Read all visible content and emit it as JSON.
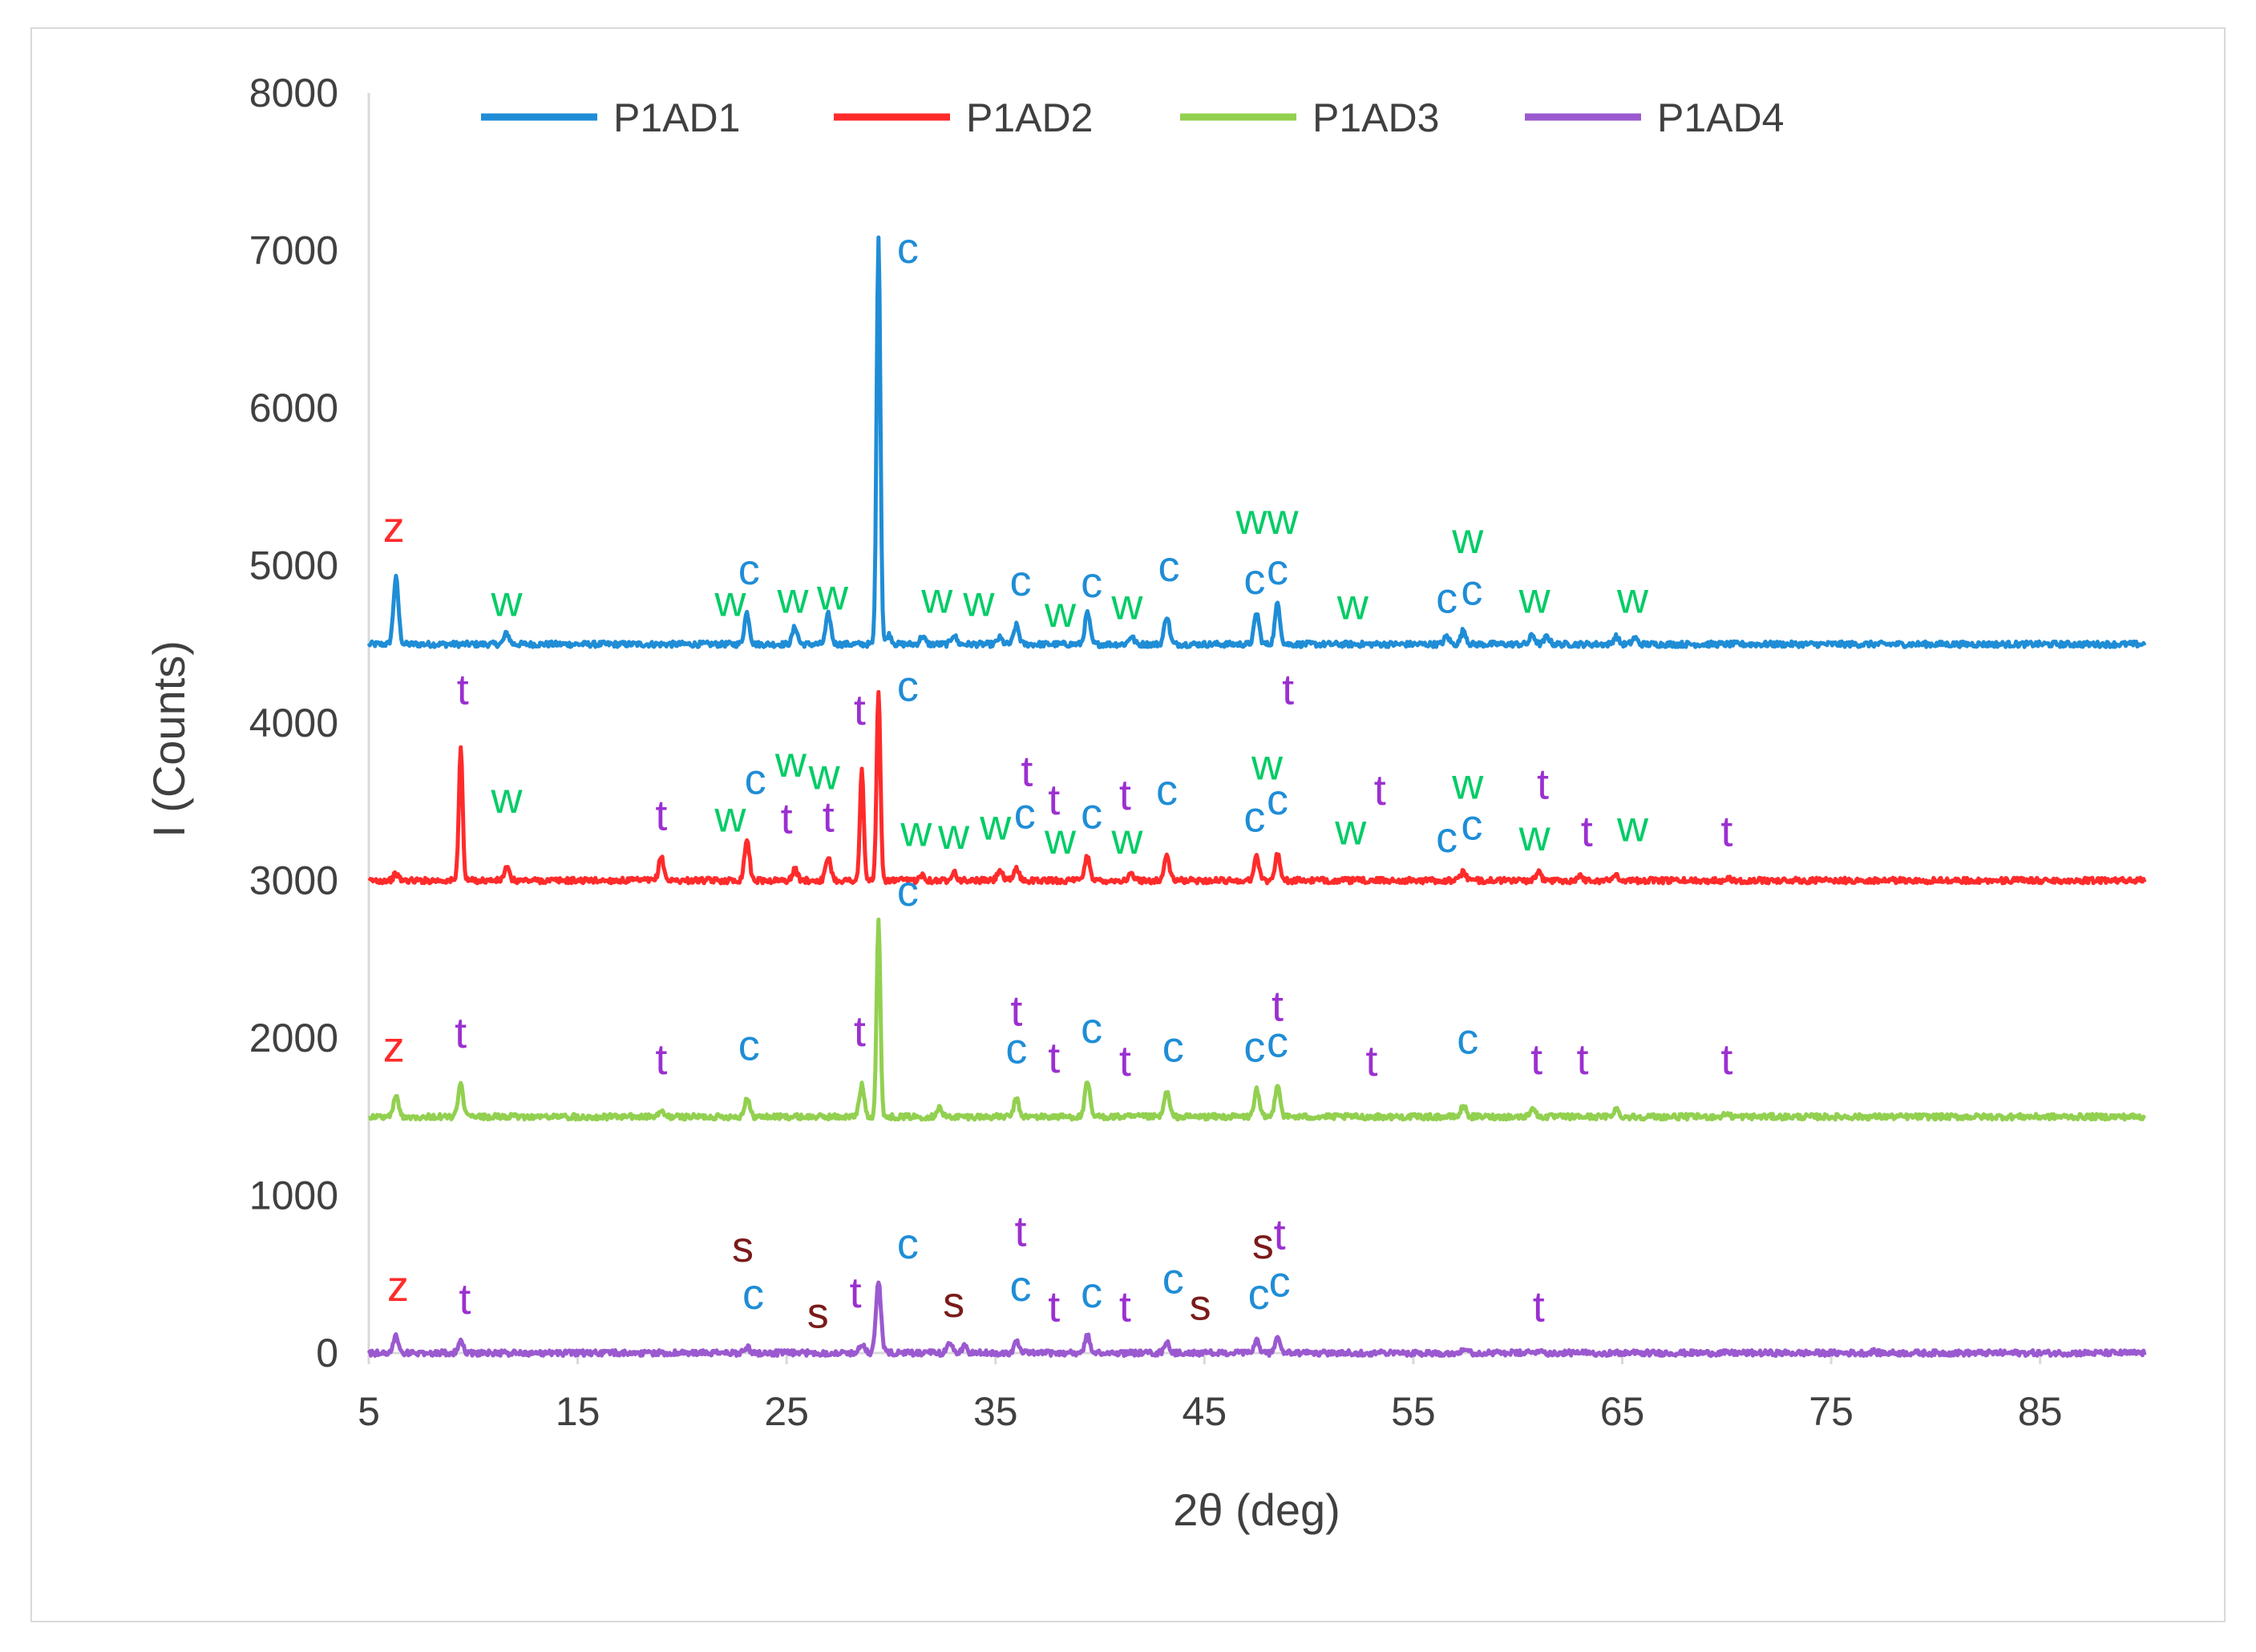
{
  "chart_data": {
    "type": "line",
    "title": "",
    "xlabel": "2θ (deg)",
    "ylabel": "I (Counts)",
    "xlim": [
      5,
      90
    ],
    "ylim": [
      0,
      8000
    ],
    "x_ticks": [
      5,
      15,
      25,
      35,
      45,
      55,
      65,
      75,
      85
    ],
    "y_ticks": [
      0,
      1000,
      2000,
      3000,
      4000,
      5000,
      6000,
      7000,
      8000
    ],
    "legend_position": "top",
    "series": [
      {
        "name": "P1AD1",
        "color": "#1f8dd6",
        "baseline": 4500,
        "peaks": [
          [
            6.3,
            420
          ],
          [
            11.6,
            70
          ],
          [
            23.1,
            200
          ],
          [
            25.4,
            110
          ],
          [
            27.0,
            190
          ],
          [
            29.4,
            2600
          ],
          [
            29.9,
            60
          ],
          [
            31.5,
            50
          ],
          [
            33.0,
            60
          ],
          [
            35.2,
            40
          ],
          [
            36.0,
            120
          ],
          [
            39.4,
            200
          ],
          [
            41.5,
            50
          ],
          [
            43.2,
            180
          ],
          [
            47.5,
            200
          ],
          [
            48.5,
            260
          ],
          [
            56.6,
            50
          ],
          [
            57.4,
            90
          ],
          [
            60.7,
            60
          ],
          [
            61.4,
            50
          ],
          [
            64.7,
            50
          ],
          [
            65.6,
            40
          ]
        ]
      },
      {
        "name": "P1AD2",
        "color": "#ff2b2b",
        "baseline": 3000,
        "peaks": [
          [
            6.3,
            40
          ],
          [
            9.4,
            850
          ],
          [
            11.6,
            80
          ],
          [
            19.0,
            150
          ],
          [
            23.1,
            260
          ],
          [
            25.4,
            70
          ],
          [
            27.0,
            150
          ],
          [
            28.6,
            700
          ],
          [
            29.4,
            1200
          ],
          [
            31.5,
            40
          ],
          [
            33.0,
            60
          ],
          [
            35.2,
            70
          ],
          [
            36.0,
            80
          ],
          [
            39.4,
            160
          ],
          [
            41.5,
            40
          ],
          [
            43.2,
            160
          ],
          [
            47.5,
            150
          ],
          [
            48.5,
            170
          ],
          [
            57.4,
            60
          ],
          [
            61.0,
            50
          ],
          [
            63.0,
            30
          ],
          [
            64.7,
            40
          ],
          [
            70.0,
            20
          ]
        ]
      },
      {
        "name": "P1AD3",
        "color": "#92d050",
        "baseline": 1500,
        "peaks": [
          [
            6.3,
            130
          ],
          [
            9.4,
            200
          ],
          [
            19.0,
            30
          ],
          [
            23.1,
            120
          ],
          [
            28.6,
            200
          ],
          [
            29.4,
            1240
          ],
          [
            32.3,
            60
          ],
          [
            36.0,
            110
          ],
          [
            39.4,
            220
          ],
          [
            43.2,
            160
          ],
          [
            47.5,
            170
          ],
          [
            48.5,
            210
          ],
          [
            57.4,
            70
          ],
          [
            60.7,
            60
          ],
          [
            64.7,
            50
          ],
          [
            70.0,
            20
          ]
        ]
      },
      {
        "name": "P1AD4",
        "color": "#9b59d0",
        "baseline": 0,
        "peaks": [
          [
            6.3,
            110
          ],
          [
            9.4,
            70
          ],
          [
            23.1,
            40
          ],
          [
            28.6,
            60
          ],
          [
            29.4,
            450
          ],
          [
            32.8,
            70
          ],
          [
            33.5,
            40
          ],
          [
            36.0,
            70
          ],
          [
            39.4,
            110
          ],
          [
            43.2,
            70
          ],
          [
            47.5,
            80
          ],
          [
            48.5,
            100
          ],
          [
            57.4,
            30
          ],
          [
            61.0,
            20
          ],
          [
            77.0,
            10
          ]
        ]
      }
    ],
    "annotations": [
      {
        "text": "c",
        "x": 30.8,
        "y": 6920,
        "color": "#1f8dd6"
      },
      {
        "text": "z",
        "x": 6.2,
        "y": 5150,
        "color": "#ff2b2b"
      },
      {
        "text": "w",
        "x": 11.6,
        "y": 4680,
        "color": "#00cc66"
      },
      {
        "text": "w",
        "x": 22.3,
        "y": 4680,
        "color": "#00cc66"
      },
      {
        "text": "c",
        "x": 23.2,
        "y": 4880,
        "color": "#1f8dd6"
      },
      {
        "text": "w",
        "x": 25.3,
        "y": 4700,
        "color": "#00cc66"
      },
      {
        "text": "w",
        "x": 27.2,
        "y": 4720,
        "color": "#00cc66"
      },
      {
        "text": "w",
        "x": 32.2,
        "y": 4700,
        "color": "#00cc66"
      },
      {
        "text": "w",
        "x": 34.2,
        "y": 4680,
        "color": "#00cc66"
      },
      {
        "text": "c",
        "x": 36.2,
        "y": 4810,
        "color": "#1f8dd6"
      },
      {
        "text": "w",
        "x": 38.1,
        "y": 4610,
        "color": "#00cc66"
      },
      {
        "text": "c",
        "x": 39.6,
        "y": 4800,
        "color": "#1f8dd6"
      },
      {
        "text": "w",
        "x": 41.3,
        "y": 4660,
        "color": "#00cc66"
      },
      {
        "text": "c",
        "x": 43.3,
        "y": 4900,
        "color": "#1f8dd6"
      },
      {
        "text": "ww",
        "x": 48.0,
        "y": 5200,
        "color": "#00cc66"
      },
      {
        "text": "c",
        "x": 47.4,
        "y": 4820,
        "color": "#1f8dd6"
      },
      {
        "text": "c",
        "x": 48.5,
        "y": 4880,
        "color": "#1f8dd6"
      },
      {
        "text": "w",
        "x": 52.1,
        "y": 4660,
        "color": "#00cc66"
      },
      {
        "text": "c",
        "x": 56.6,
        "y": 4700,
        "color": "#1f8dd6"
      },
      {
        "text": "c",
        "x": 57.8,
        "y": 4750,
        "color": "#1f8dd6"
      },
      {
        "text": "w",
        "x": 57.6,
        "y": 5080,
        "color": "#00cc66"
      },
      {
        "text": "w",
        "x": 60.8,
        "y": 4700,
        "color": "#00cc66"
      },
      {
        "text": "w",
        "x": 65.5,
        "y": 4700,
        "color": "#00cc66"
      },
      {
        "text": "t",
        "x": 9.5,
        "y": 4120,
        "color": "#9b30d0"
      },
      {
        "text": "c",
        "x": 30.8,
        "y": 4140,
        "color": "#1f8dd6"
      },
      {
        "text": "t",
        "x": 28.5,
        "y": 3990,
        "color": "#9b30d0"
      },
      {
        "text": "t",
        "x": 49.0,
        "y": 4120,
        "color": "#9b30d0"
      },
      {
        "text": "w",
        "x": 11.6,
        "y": 3430,
        "color": "#00cc66"
      },
      {
        "text": "t",
        "x": 19.0,
        "y": 3320,
        "color": "#9b30d0"
      },
      {
        "text": "w",
        "x": 22.3,
        "y": 3310,
        "color": "#00cc66"
      },
      {
        "text": "c",
        "x": 23.5,
        "y": 3550,
        "color": "#1f8dd6"
      },
      {
        "text": "w",
        "x": 25.2,
        "y": 3660,
        "color": "#00cc66"
      },
      {
        "text": "w",
        "x": 26.8,
        "y": 3580,
        "color": "#00cc66"
      },
      {
        "text": "t",
        "x": 25.0,
        "y": 3300,
        "color": "#9b30d0"
      },
      {
        "text": "t",
        "x": 27.0,
        "y": 3310,
        "color": "#9b30d0"
      },
      {
        "text": "w",
        "x": 31.2,
        "y": 3220,
        "color": "#00cc66"
      },
      {
        "text": "w",
        "x": 33.0,
        "y": 3200,
        "color": "#00cc66"
      },
      {
        "text": "w",
        "x": 35.0,
        "y": 3260,
        "color": "#00cc66"
      },
      {
        "text": "t",
        "x": 36.5,
        "y": 3600,
        "color": "#9b30d0"
      },
      {
        "text": "c",
        "x": 36.4,
        "y": 3330,
        "color": "#1f8dd6"
      },
      {
        "text": "t",
        "x": 37.8,
        "y": 3420,
        "color": "#9b30d0"
      },
      {
        "text": "w",
        "x": 38.1,
        "y": 3170,
        "color": "#00cc66"
      },
      {
        "text": "c",
        "x": 39.6,
        "y": 3330,
        "color": "#1f8dd6"
      },
      {
        "text": "t",
        "x": 41.2,
        "y": 3450,
        "color": "#9b30d0"
      },
      {
        "text": "w",
        "x": 41.3,
        "y": 3170,
        "color": "#00cc66"
      },
      {
        "text": "c",
        "x": 43.2,
        "y": 3480,
        "color": "#1f8dd6"
      },
      {
        "text": "w",
        "x": 48.0,
        "y": 3640,
        "color": "#00cc66"
      },
      {
        "text": "c",
        "x": 47.4,
        "y": 3310,
        "color": "#1f8dd6"
      },
      {
        "text": "c",
        "x": 48.5,
        "y": 3420,
        "color": "#1f8dd6"
      },
      {
        "text": "w",
        "x": 52.0,
        "y": 3230,
        "color": "#00cc66"
      },
      {
        "text": "t",
        "x": 53.4,
        "y": 3480,
        "color": "#9b30d0"
      },
      {
        "text": "w",
        "x": 57.6,
        "y": 3520,
        "color": "#00cc66"
      },
      {
        "text": "c",
        "x": 56.6,
        "y": 3180,
        "color": "#1f8dd6"
      },
      {
        "text": "c",
        "x": 57.8,
        "y": 3260,
        "color": "#1f8dd6"
      },
      {
        "text": "t",
        "x": 61.2,
        "y": 3520,
        "color": "#9b30d0"
      },
      {
        "text": "w",
        "x": 60.8,
        "y": 3190,
        "color": "#00cc66"
      },
      {
        "text": "t",
        "x": 63.3,
        "y": 3220,
        "color": "#9b30d0"
      },
      {
        "text": "w",
        "x": 65.5,
        "y": 3250,
        "color": "#00cc66"
      },
      {
        "text": "t",
        "x": 70.0,
        "y": 3220,
        "color": "#9b30d0"
      },
      {
        "text": "c",
        "x": 30.8,
        "y": 2840,
        "color": "#1f8dd6"
      },
      {
        "text": "z",
        "x": 6.2,
        "y": 1850,
        "color": "#ff2b2b"
      },
      {
        "text": "t",
        "x": 9.4,
        "y": 1940,
        "color": "#9b30d0"
      },
      {
        "text": "t",
        "x": 19.0,
        "y": 1770,
        "color": "#9b30d0"
      },
      {
        "text": "c",
        "x": 23.2,
        "y": 1860,
        "color": "#1f8dd6"
      },
      {
        "text": "t",
        "x": 28.5,
        "y": 1950,
        "color": "#9b30d0"
      },
      {
        "text": "t",
        "x": 36.0,
        "y": 2080,
        "color": "#9b30d0"
      },
      {
        "text": "c",
        "x": 36.0,
        "y": 1840,
        "color": "#1f8dd6"
      },
      {
        "text": "t",
        "x": 37.8,
        "y": 1780,
        "color": "#9b30d0"
      },
      {
        "text": "c",
        "x": 39.6,
        "y": 1970,
        "color": "#1f8dd6"
      },
      {
        "text": "t",
        "x": 41.2,
        "y": 1760,
        "color": "#9b30d0"
      },
      {
        "text": "c",
        "x": 43.5,
        "y": 1850,
        "color": "#1f8dd6"
      },
      {
        "text": "t",
        "x": 48.5,
        "y": 2110,
        "color": "#9b30d0"
      },
      {
        "text": "c",
        "x": 47.4,
        "y": 1850,
        "color": "#1f8dd6"
      },
      {
        "text": "c",
        "x": 48.5,
        "y": 1880,
        "color": "#1f8dd6"
      },
      {
        "text": "t",
        "x": 53.0,
        "y": 1760,
        "color": "#9b30d0"
      },
      {
        "text": "c",
        "x": 57.6,
        "y": 1900,
        "color": "#1f8dd6"
      },
      {
        "text": "t",
        "x": 60.9,
        "y": 1770,
        "color": "#9b30d0"
      },
      {
        "text": "t",
        "x": 63.1,
        "y": 1770,
        "color": "#9b30d0"
      },
      {
        "text": "t",
        "x": 70.0,
        "y": 1770,
        "color": "#9b30d0"
      },
      {
        "text": "z",
        "x": 6.4,
        "y": 330,
        "color": "#ff2b2b"
      },
      {
        "text": "t",
        "x": 9.6,
        "y": 250,
        "color": "#9b30d0"
      },
      {
        "text": "s",
        "x": 22.9,
        "y": 580,
        "color": "#7b1a1a"
      },
      {
        "text": "c",
        "x": 23.4,
        "y": 280,
        "color": "#1f8dd6"
      },
      {
        "text": "s",
        "x": 26.5,
        "y": 160,
        "color": "#7b1a1a"
      },
      {
        "text": "t",
        "x": 28.3,
        "y": 290,
        "color": "#9b30d0"
      },
      {
        "text": "c",
        "x": 30.8,
        "y": 600,
        "color": "#1f8dd6"
      },
      {
        "text": "s",
        "x": 33.0,
        "y": 230,
        "color": "#7b1a1a"
      },
      {
        "text": "t",
        "x": 36.2,
        "y": 680,
        "color": "#9b30d0"
      },
      {
        "text": "c",
        "x": 36.2,
        "y": 330,
        "color": "#1f8dd6"
      },
      {
        "text": "t",
        "x": 37.8,
        "y": 200,
        "color": "#9b30d0"
      },
      {
        "text": "c",
        "x": 39.6,
        "y": 290,
        "color": "#1f8dd6"
      },
      {
        "text": "t",
        "x": 41.2,
        "y": 200,
        "color": "#9b30d0"
      },
      {
        "text": "c",
        "x": 43.5,
        "y": 380,
        "color": "#1f8dd6"
      },
      {
        "text": "s",
        "x": 44.8,
        "y": 210,
        "color": "#7b1a1a"
      },
      {
        "text": "s",
        "x": 47.8,
        "y": 600,
        "color": "#7b1a1a"
      },
      {
        "text": "t",
        "x": 48.6,
        "y": 660,
        "color": "#9b30d0"
      },
      {
        "text": "c",
        "x": 47.6,
        "y": 280,
        "color": "#1f8dd6"
      },
      {
        "text": "c",
        "x": 48.6,
        "y": 360,
        "color": "#1f8dd6"
      },
      {
        "text": "t",
        "x": 61.0,
        "y": 200,
        "color": "#9b30d0"
      }
    ]
  }
}
